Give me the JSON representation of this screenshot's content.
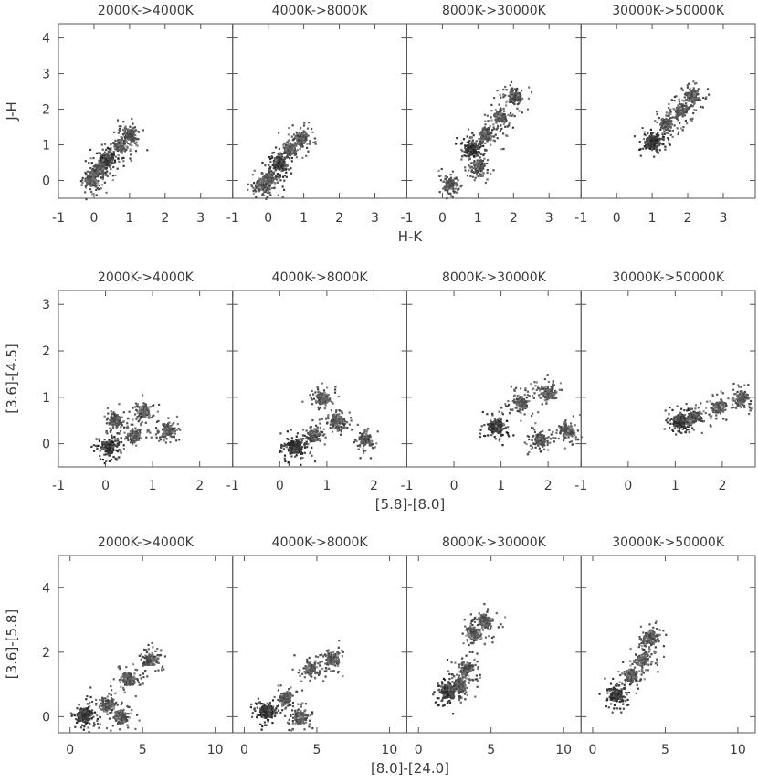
{
  "chart_data": [
    {
      "type": "scatter",
      "panel_titles": [
        "2000K->4000K",
        "4000K->8000K",
        "8000K->30000K",
        "30000K->50000K"
      ],
      "xlabel": "H-K",
      "ylabel": "J-H",
      "xlim": [
        -1.0,
        3.9
      ],
      "ylim": [
        -0.5,
        4.4
      ],
      "xticks": [
        "-1",
        "0",
        "1",
        "2",
        "3"
      ],
      "yticks": [
        "0",
        "1",
        "2",
        "3",
        "4"
      ],
      "density_points": [
        [
          [
            0.35,
            0.6
          ],
          [
            0.7,
            1.0
          ],
          [
            1.0,
            1.3
          ],
          [
            0.1,
            0.3
          ],
          [
            -0.1,
            0.0
          ]
        ],
        [
          [
            0.3,
            0.5
          ],
          [
            0.6,
            0.9
          ],
          [
            0.9,
            1.2
          ],
          [
            0.0,
            0.1
          ],
          [
            -0.2,
            -0.1
          ]
        ],
        [
          [
            0.8,
            0.9
          ],
          [
            1.2,
            1.3
          ],
          [
            1.6,
            1.8
          ],
          [
            0.2,
            -0.1
          ],
          [
            1.0,
            0.4
          ],
          [
            2.0,
            2.4
          ]
        ],
        [
          [
            1.0,
            1.1
          ],
          [
            1.4,
            1.6
          ],
          [
            1.8,
            2.0
          ],
          [
            2.1,
            2.4
          ]
        ]
      ]
    },
    {
      "type": "scatter",
      "panel_titles": [
        "2000K->4000K",
        "4000K->8000K",
        "8000K->30000K",
        "30000K->50000K"
      ],
      "xlabel": "[5.8]-[8.0]",
      "ylabel": "[3.6]-[4.5]",
      "xlim": [
        -1.0,
        2.7
      ],
      "ylim": [
        -0.5,
        3.3
      ],
      "xticks": [
        "-1",
        "0",
        "1",
        "2"
      ],
      "yticks": [
        "0",
        "1",
        "2",
        "3"
      ],
      "density_points": [
        [
          [
            0.05,
            -0.05
          ],
          [
            0.6,
            0.2
          ],
          [
            0.8,
            0.7
          ],
          [
            1.3,
            0.3
          ],
          [
            0.2,
            0.5
          ]
        ],
        [
          [
            0.3,
            -0.05
          ],
          [
            0.7,
            0.2
          ],
          [
            1.2,
            0.5
          ],
          [
            1.8,
            0.1
          ],
          [
            0.9,
            1.0
          ]
        ],
        [
          [
            0.9,
            0.4
          ],
          [
            1.4,
            0.9
          ],
          [
            2.0,
            1.1
          ],
          [
            2.4,
            0.3
          ],
          [
            1.8,
            0.1
          ]
        ],
        [
          [
            1.1,
            0.5
          ],
          [
            1.4,
            0.6
          ],
          [
            1.9,
            0.8
          ],
          [
            2.4,
            1.0
          ]
        ]
      ]
    },
    {
      "type": "scatter",
      "panel_titles": [
        "2000K->4000K",
        "4000K->8000K",
        "8000K->30000K",
        "30000K->50000K"
      ],
      "xlabel": "[8.0]-[24.0]",
      "ylabel": "[3.6]-[5.8]",
      "xlim": [
        -0.8,
        11.2
      ],
      "ylim": [
        -0.5,
        5.0
      ],
      "xticks": [
        "0",
        "5",
        "10"
      ],
      "yticks": [
        "0",
        "2",
        "4"
      ],
      "density_points": [
        [
          [
            1.0,
            0.1
          ],
          [
            2.5,
            0.4
          ],
          [
            4.0,
            1.2
          ],
          [
            5.5,
            1.8
          ],
          [
            3.5,
            0.0
          ]
        ],
        [
          [
            1.5,
            0.2
          ],
          [
            2.8,
            0.6
          ],
          [
            4.5,
            1.5
          ],
          [
            6.0,
            1.8
          ],
          [
            3.8,
            0.0
          ]
        ],
        [
          [
            2.0,
            0.8
          ],
          [
            3.2,
            1.5
          ],
          [
            3.8,
            2.6
          ],
          [
            4.5,
            3.0
          ],
          [
            2.8,
            1.0
          ]
        ],
        [
          [
            1.6,
            0.7
          ],
          [
            2.6,
            1.3
          ],
          [
            3.4,
            1.8
          ],
          [
            3.9,
            2.5
          ]
        ]
      ]
    }
  ]
}
